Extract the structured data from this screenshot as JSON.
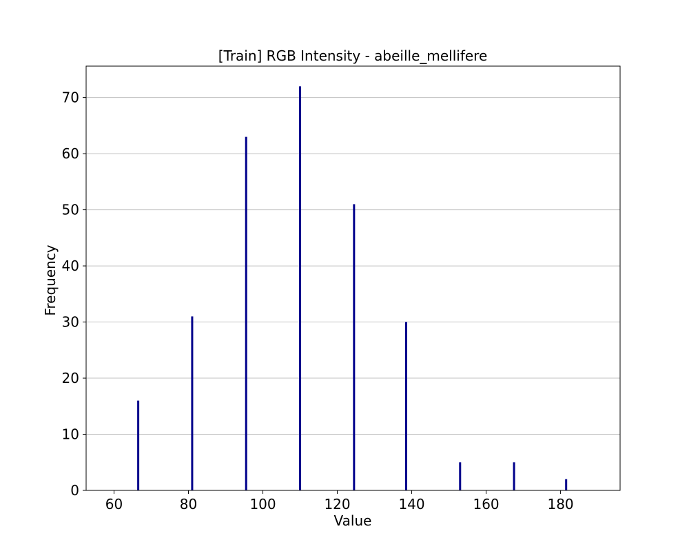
{
  "chart_data": {
    "type": "bar",
    "title": "[Train] RGB Intensity - abeille_mellifere",
    "xlabel": "Value",
    "ylabel": "Frequency",
    "xlim": [
      52.5,
      196
    ],
    "ylim": [
      0,
      75.6
    ],
    "xticks": [
      60,
      80,
      100,
      120,
      140,
      160,
      180
    ],
    "yticks": [
      0,
      10,
      20,
      30,
      40,
      50,
      60,
      70
    ],
    "grid": "y",
    "legend": "none",
    "bar_color": "#00008b",
    "grid_color": "#c0c0c0",
    "x": [
      66.5,
      81,
      95.5,
      110,
      124.5,
      138.5,
      153,
      167.5,
      181.5
    ],
    "values": [
      16,
      31,
      63,
      72,
      51,
      30,
      5,
      5,
      2
    ]
  }
}
